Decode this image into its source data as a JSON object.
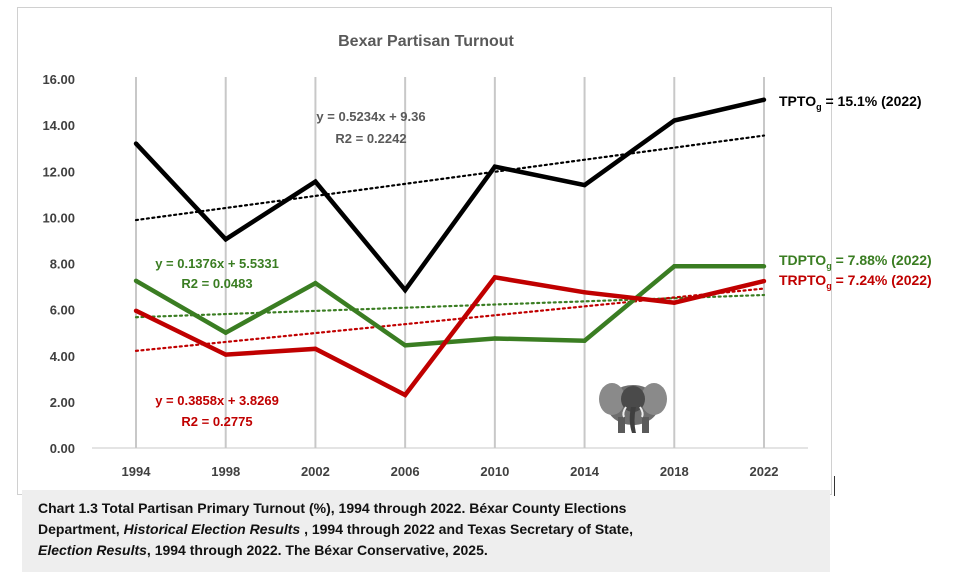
{
  "chart_data": {
    "type": "line",
    "title": "Bexar  Partisan Turnout",
    "categories": [
      "1994",
      "1998",
      "2002",
      "2006",
      "2010",
      "2014",
      "2018",
      "2022"
    ],
    "ylim": [
      0,
      16
    ],
    "y_ticks": [
      "0.00",
      "2.00",
      "4.00",
      "6.00",
      "8.00",
      "10.00",
      "12.00",
      "14.00",
      "16.00"
    ],
    "grid": "vertical",
    "series": [
      {
        "name": "TPTO",
        "color": "#000000",
        "values": [
          13.2,
          9.05,
          11.55,
          6.85,
          12.2,
          11.4,
          14.2,
          15.1
        ],
        "trend": {
          "slope": 0.5234,
          "intercept": 9.36
        },
        "equation": "y = 0.5234x + 9.36",
        "r2": "R2 = 0.2242",
        "callout": {
          "prefix": "TPTO",
          "sub": "g",
          "text": " = 15.1% (2022)"
        }
      },
      {
        "name": "TDPTO",
        "color": "#3a7d22",
        "values": [
          7.25,
          5.0,
          7.15,
          4.45,
          4.75,
          4.65,
          7.88,
          7.88
        ],
        "trend": {
          "slope": 0.1376,
          "intercept": 5.5331
        },
        "equation": "y = 0.1376x + 5.5331",
        "r2": "R2 = 0.0483",
        "callout": {
          "prefix": "TDPTO",
          "sub": "g",
          "text": " = 7.88% (2022)"
        }
      },
      {
        "name": "TRPTO",
        "color": "#c00000",
        "values": [
          5.95,
          4.05,
          4.3,
          2.3,
          7.4,
          6.75,
          6.3,
          7.24
        ],
        "trend": {
          "slope": 0.3858,
          "intercept": 3.8269
        },
        "equation": "y = 0.3858x + 3.8269",
        "r2": "R2 = 0.2775",
        "callout": {
          "prefix": "TRPTO",
          "sub": "g",
          "text": " = 7.24% (2022)"
        }
      }
    ]
  },
  "caption": {
    "line1": "Chart 1.3 Total Partisan Primary Turnout (%), 1994 through 2022. Béxar County Elections",
    "line2_a": "Department, ",
    "line2_i": "Historical Election Results",
    "line2_b": " , 1994 through 2022 and Texas Secretary of State,",
    "line3_i": "Election Results",
    "line3_b": ", 1994 through 2022. The Béxar Conservative, 2025."
  }
}
